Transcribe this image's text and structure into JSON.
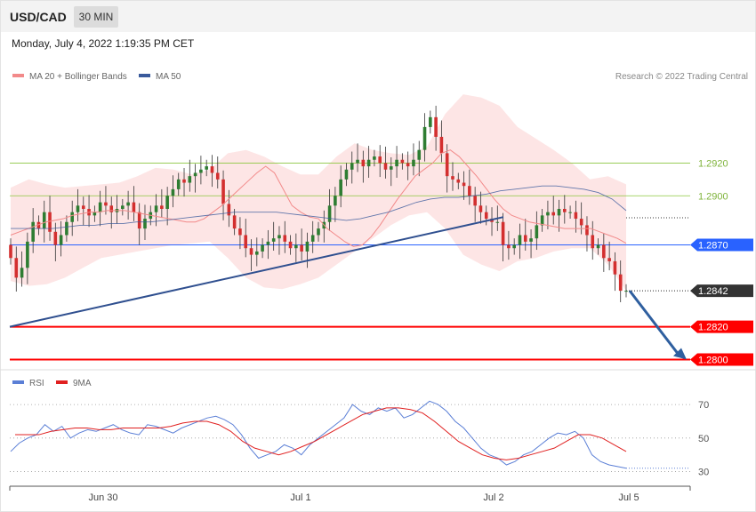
{
  "header": {
    "symbol": "USD/CAD",
    "timeframe": "30 MIN",
    "timestamp": "Monday, July 4, 2022 1:19:35 PM CET"
  },
  "legend": {
    "main": [
      {
        "label": "MA 20 + Bollinger Bands",
        "color": "#f28a8a"
      },
      {
        "label": "MA 50",
        "color": "#3a5a9c"
      }
    ],
    "rsi": [
      {
        "label": "RSI",
        "color": "#5b7fd6"
      },
      {
        "label": "9MA",
        "color": "#e02020"
      }
    ]
  },
  "copyright": "Research © 2022 Trading Central",
  "colors": {
    "bull": "#2e7d32",
    "bear": "#d32f2f",
    "support": "#ff0000",
    "pivot": "#2962ff",
    "resistance": "#8cc63f",
    "current": "#333333",
    "bands": "#fde0e0",
    "arrow": "#2f5f9f",
    "trendline": "#2f4f8f"
  },
  "chart_data": [
    {
      "type": "candlestick",
      "title": "USD/CAD 30 MIN",
      "x_labels": [
        "Jun 30",
        "Jul 1",
        "Jul 2",
        "Jul 5"
      ],
      "ylim": [
        1.2797,
        1.2968
      ],
      "levels": [
        {
          "value": 1.292,
          "label": "1.2920",
          "kind": "resistance"
        },
        {
          "value": 1.29,
          "label": "1.2900",
          "kind": "resistance"
        },
        {
          "value": 1.287,
          "label": "1.2870",
          "kind": "pivot"
        },
        {
          "value": 1.2842,
          "label": "1.2842",
          "kind": "current"
        },
        {
          "value": 1.282,
          "label": "1.2820",
          "kind": "support"
        },
        {
          "value": 1.28,
          "label": "1.2800",
          "kind": "support"
        }
      ],
      "close_series": [
        1.2862,
        1.285,
        1.2856,
        1.2872,
        1.2884,
        1.288,
        1.289,
        1.2878,
        1.287,
        1.2876,
        1.2884,
        1.289,
        1.2894,
        1.2892,
        1.2888,
        1.289,
        1.2896,
        1.2894,
        1.289,
        1.2892,
        1.2894,
        1.2896,
        1.289,
        1.288,
        1.2886,
        1.289,
        1.2894,
        1.2892,
        1.29,
        1.2904,
        1.291,
        1.2908,
        1.2912,
        1.2914,
        1.2916,
        1.2918,
        1.2914,
        1.291,
        1.2895,
        1.2888,
        1.288,
        1.2876,
        1.2868,
        1.2864,
        1.2866,
        1.287,
        1.2872,
        1.2874,
        1.2876,
        1.2872,
        1.2868,
        1.287,
        1.2866,
        1.2872,
        1.2876,
        1.288,
        1.2884,
        1.2894,
        1.29,
        1.291,
        1.2916,
        1.292,
        1.2922,
        1.2918,
        1.2922,
        1.2924,
        1.292,
        1.2916,
        1.2918,
        1.2922,
        1.292,
        1.2918,
        1.2922,
        1.2928,
        1.2942,
        1.2948,
        1.2936,
        1.2926,
        1.2912,
        1.291,
        1.2908,
        1.2906,
        1.29,
        1.2894,
        1.289,
        1.2886,
        1.2884,
        1.2884,
        1.287,
        1.2868,
        1.287,
        1.2876,
        1.2872,
        1.2874,
        1.2882,
        1.2888,
        1.289,
        1.2888,
        1.2892,
        1.289,
        1.289,
        1.2886,
        1.2882,
        1.2876,
        1.2868,
        1.287,
        1.2862,
        1.286,
        1.2852,
        1.2842,
        1.2842
      ],
      "ma20": [
        1.2876,
        1.2878,
        1.288,
        1.2882,
        1.2884,
        1.2885,
        1.2886,
        1.2888,
        1.2889,
        1.289,
        1.289,
        1.2891,
        1.2891,
        1.2891,
        1.289,
        1.2889,
        1.2888,
        1.2887,
        1.2886,
        1.2885,
        1.2884,
        1.2884,
        1.2886,
        1.289,
        1.2894,
        1.2899,
        1.2904,
        1.2909,
        1.2914,
        1.2918,
        1.2914,
        1.2904,
        1.2894,
        1.289,
        1.2887,
        1.2886,
        1.288,
        1.2876,
        1.2872,
        1.2869,
        1.287,
        1.2875,
        1.2882,
        1.289,
        1.2898,
        1.2905,
        1.2912,
        1.2916,
        1.292,
        1.2926,
        1.2928,
        1.2924,
        1.2918,
        1.2912,
        1.2905,
        1.2898,
        1.2892,
        1.2888,
        1.2886,
        1.2884,
        1.2883,
        1.2882,
        1.2881,
        1.288,
        1.288,
        1.288,
        1.288,
        1.2878,
        1.2876,
        1.2874,
        1.2871
      ],
      "ma50": [
        1.288,
        1.288,
        1.288,
        1.288,
        1.2881,
        1.2882,
        1.2882,
        1.2883,
        1.2883,
        1.2884,
        1.2884,
        1.2885,
        1.2886,
        1.2887,
        1.2888,
        1.2889,
        1.289,
        1.289,
        1.289,
        1.289,
        1.2889,
        1.2888,
        1.2887,
        1.2886,
        1.2885,
        1.2886,
        1.2888,
        1.289,
        1.2893,
        1.2896,
        1.2898,
        1.2899,
        1.2899,
        1.29,
        1.2901,
        1.2903,
        1.2904,
        1.2905,
        1.2906,
        1.2906,
        1.2905,
        1.2904,
        1.2902,
        1.2898,
        1.2891
      ],
      "bb_upper": [
        1.2905,
        1.291,
        1.2907,
        1.2905,
        1.2906,
        1.2907,
        1.2908,
        1.2912,
        1.2917,
        1.2916,
        1.2913,
        1.2916,
        1.2926,
        1.2928,
        1.2924,
        1.2918,
        1.2913,
        1.2913,
        1.2924,
        1.2932,
        1.2928,
        1.2926,
        1.2925,
        1.293,
        1.295,
        1.2962,
        1.296,
        1.2955,
        1.2942,
        1.2935,
        1.2928,
        1.292,
        1.291,
        1.2912,
        1.2907
      ],
      "bb_lower": [
        1.2848,
        1.2845,
        1.2846,
        1.285,
        1.2856,
        1.2862,
        1.2864,
        1.2866,
        1.2868,
        1.287,
        1.2871,
        1.2872,
        1.2862,
        1.285,
        1.2844,
        1.2843,
        1.2846,
        1.285,
        1.2858,
        1.2866,
        1.2874,
        1.2882,
        1.2888,
        1.289,
        1.288,
        1.2864,
        1.2858,
        1.2854,
        1.286,
        1.2862,
        1.2866,
        1.2868,
        1.2868,
        1.2858,
        1.2842
      ]
    },
    {
      "type": "line",
      "title": "RSI",
      "ylim": [
        25,
        78
      ],
      "yticks": [
        30,
        50,
        70
      ],
      "series": [
        {
          "name": "RSI",
          "values": [
            42,
            47,
            50,
            52,
            58,
            54,
            57,
            50,
            53,
            55,
            54,
            56,
            58,
            55,
            53,
            52,
            58,
            57,
            55,
            53,
            56,
            58,
            60,
            62,
            63,
            61,
            58,
            52,
            44,
            38,
            40,
            42,
            46,
            44,
            40,
            46,
            50,
            54,
            58,
            62,
            70,
            66,
            64,
            68,
            66,
            68,
            62,
            64,
            68,
            72,
            70,
            66,
            60,
            56,
            50,
            44,
            40,
            38,
            34,
            36,
            40,
            42,
            46,
            50,
            53,
            52,
            54,
            50,
            40,
            36,
            34,
            33,
            32
          ]
        },
        {
          "name": "9MA",
          "values": [
            52,
            52,
            52,
            54,
            55,
            56,
            56,
            55,
            55,
            56,
            56,
            56,
            56,
            57,
            59,
            60,
            60,
            58,
            54,
            48,
            44,
            42,
            40,
            42,
            45,
            48,
            52,
            56,
            60,
            64,
            66,
            68,
            68,
            67,
            65,
            60,
            54,
            48,
            44,
            40,
            38,
            37,
            38,
            40,
            42,
            44,
            48,
            52,
            52,
            50,
            46,
            42
          ]
        }
      ]
    }
  ]
}
